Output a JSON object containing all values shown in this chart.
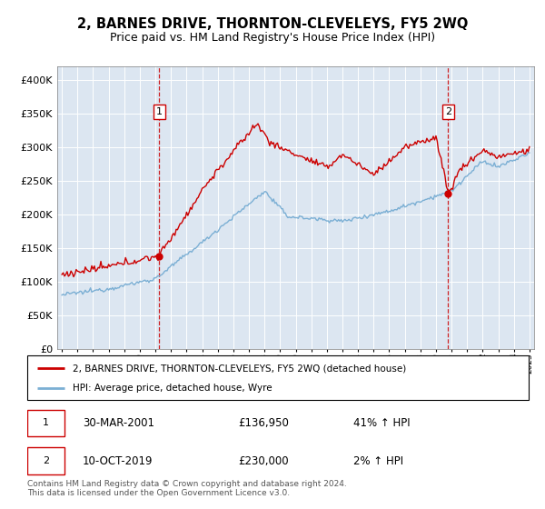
{
  "title": "2, BARNES DRIVE, THORNTON-CLEVELEYS, FY5 2WQ",
  "subtitle": "Price paid vs. HM Land Registry's House Price Index (HPI)",
  "legend_line1": "2, BARNES DRIVE, THORNTON-CLEVELEYS, FY5 2WQ (detached house)",
  "legend_line2": "HPI: Average price, detached house, Wyre",
  "annotation1": {
    "label": "1",
    "date": "30-MAR-2001",
    "price": "£136,950",
    "pct": "41% ↑ HPI"
  },
  "annotation2": {
    "label": "2",
    "date": "10-OCT-2019",
    "price": "£230,000",
    "pct": "2% ↑ HPI"
  },
  "footer": "Contains HM Land Registry data © Crown copyright and database right 2024.\nThis data is licensed under the Open Government Licence v3.0.",
  "sale1_year": 2001.25,
  "sale2_year": 2019.78,
  "red_color": "#cc0000",
  "blue_color": "#7bafd4",
  "background_color": "#dce6f1",
  "ylim": [
    0,
    420000
  ],
  "yticks": [
    0,
    50000,
    100000,
    150000,
    200000,
    250000,
    300000,
    350000,
    400000
  ],
  "xlim_start": 1994.7,
  "xlim_end": 2025.3
}
